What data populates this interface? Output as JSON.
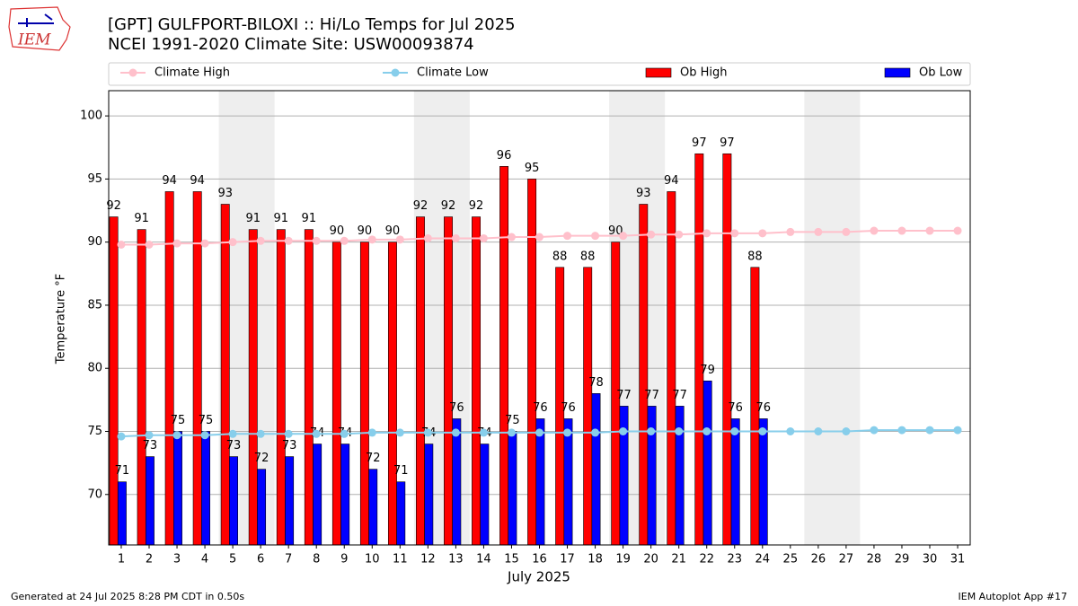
{
  "chart_data": {
    "type": "bar",
    "title": "[GPT] GULFPORT-BILOXI :: Hi/Lo Temps for Jul 2025",
    "subtitle": "NCEI 1991-2020 Climate Site: USW00093874",
    "logo_text": "IEM",
    "y_label": "Temperature $^\\circ$F",
    "x_label": "July 2025",
    "footer_left": "Generated at 24 Jul 2025 8:28 PM CDT in 0.50s",
    "footer_right": "IEM Autoplot App #17",
    "x": [
      1,
      2,
      3,
      4,
      5,
      6,
      7,
      8,
      9,
      10,
      11,
      12,
      13,
      14,
      15,
      16,
      17,
      18,
      19,
      20,
      21,
      22,
      23,
      24,
      25,
      26,
      27,
      28,
      29,
      30,
      31
    ],
    "xlim": [
      0.55,
      31.45
    ],
    "xticks": [
      1,
      2,
      3,
      4,
      5,
      6,
      7,
      8,
      9,
      10,
      11,
      12,
      13,
      14,
      15,
      16,
      17,
      18,
      19,
      20,
      21,
      22,
      23,
      24,
      25,
      26,
      27,
      28,
      29,
      30,
      31
    ],
    "ylim": [
      66,
      102
    ],
    "yticks": [
      70,
      75,
      80,
      85,
      90,
      95,
      100
    ],
    "grid": true,
    "legend": "top",
    "shaded_days": [
      [
        5,
        6
      ],
      [
        12,
        13
      ],
      [
        19,
        20
      ],
      [
        26,
        27
      ]
    ],
    "series": [
      {
        "name": "Climate High",
        "kind": "line",
        "color": "#ffc0cb",
        "values": [
          89.8,
          89.8,
          89.9,
          89.9,
          90.0,
          90.1,
          90.1,
          90.1,
          90.1,
          90.2,
          90.2,
          90.3,
          90.3,
          90.3,
          90.4,
          90.4,
          90.5,
          90.5,
          90.5,
          90.6,
          90.6,
          90.7,
          90.7,
          90.7,
          90.8,
          90.8,
          90.8,
          90.9,
          90.9,
          90.9,
          90.9
        ]
      },
      {
        "name": "Climate Low",
        "kind": "line",
        "color": "#87ceeb",
        "values": [
          74.6,
          74.7,
          74.7,
          74.7,
          74.8,
          74.8,
          74.8,
          74.8,
          74.8,
          74.9,
          74.9,
          74.9,
          74.9,
          74.9,
          74.9,
          74.9,
          74.9,
          74.9,
          75.0,
          75.0,
          75.0,
          75.0,
          75.0,
          75.0,
          75.0,
          75.0,
          75.0,
          75.1,
          75.1,
          75.1,
          75.1
        ]
      },
      {
        "name": "Ob High",
        "kind": "bar",
        "color": "#ff0000",
        "values": [
          92,
          91,
          94,
          94,
          93,
          91,
          91,
          91,
          90,
          90,
          90,
          92,
          92,
          92,
          96,
          95,
          88,
          88,
          90,
          93,
          94,
          97,
          97,
          88,
          null,
          null,
          null,
          null,
          null,
          null,
          null
        ]
      },
      {
        "name": "Ob Low",
        "kind": "bar",
        "color": "#0000ff",
        "values": [
          71,
          73,
          75,
          75,
          73,
          72,
          73,
          74,
          74,
          72,
          71,
          74,
          76,
          74,
          75,
          76,
          76,
          78,
          77,
          77,
          77,
          79,
          76,
          76,
          null,
          null,
          null,
          null,
          null,
          null,
          null
        ]
      }
    ]
  }
}
